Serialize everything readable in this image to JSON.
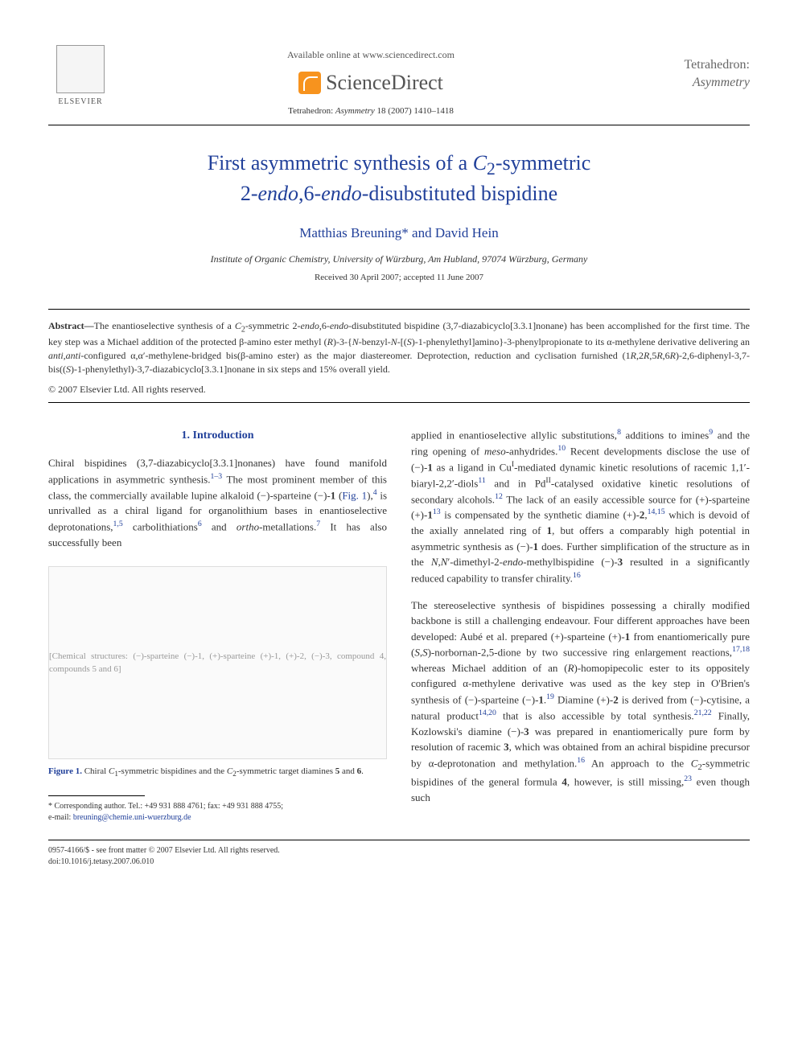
{
  "header": {
    "available_online": "Available online at www.sciencedirect.com",
    "sciencedirect": "ScienceDirect",
    "journal_ref": "Tetrahedron: Asymmetry 18 (2007) 1410–1418",
    "publisher": "ELSEVIER",
    "journal_title_main": "Tetrahedron:",
    "journal_title_sub": "Asymmetry"
  },
  "title_line1": "First asymmetric synthesis of a C₂-symmetric",
  "title_line2": "2-endo,6-endo-disubstituted bispidine",
  "authors": "Matthias Breuning* and David Hein",
  "affiliation": "Institute of Organic Chemistry, University of Würzburg, Am Hubland, 97074 Würzburg, Germany",
  "dates": "Received 30 April 2007; accepted 11 June 2007",
  "abstract": {
    "label": "Abstract—",
    "text": "The enantioselective synthesis of a C₂-symmetric 2-endo,6-endo-disubstituted bispidine (3,7-diazabicyclo[3.3.1]nonane) has been accomplished for the first time. The key step was a Michael addition of the protected β-amino ester methyl (R)-3-{N-benzyl-N-[(S)-1-phenylethyl]amino}-3-phenylpropionate to its α-methylene derivative delivering an anti,anti-configured α,α′-methylene-bridged bis(β-amino ester) as the major diastereomer. Deprotection, reduction and cyclisation furnished (1R,2R,5R,6R)-2,6-diphenyl-3,7-bis((S)-1-phenylethyl)-3,7-diazabicyclo[3.3.1]nonane in six steps and 15% overall yield.",
    "copyright": "© 2007 Elsevier Ltd. All rights reserved."
  },
  "section1_heading": "1. Introduction",
  "col1_para1": "Chiral bispidines (3,7-diazabicyclo[3.3.1]nonanes) have found manifold applications in asymmetric synthesis.¹⁻³ The most prominent member of this class, the commercially available lupine alkaloid (−)-sparteine (−)-1 (Fig. 1),⁴ is unrivalled as a chiral ligand for organolithium bases in enantioselective deprotonations,¹,⁵ carbolithiations⁶ and ortho-metallations.⁷ It has also successfully been",
  "figure1": {
    "placeholder": "[Chemical structures: (−)-sparteine (−)-1, (+)-sparteine (+)-1, (+)-2, (−)-3, compound 4, compounds 5 and 6]",
    "label": "Figure 1.",
    "caption": " Chiral C₁-symmetric bispidines and the C₂-symmetric target diamines 5 and 6."
  },
  "footnote": {
    "line1": "* Corresponding author. Tel.: +49 931 888 4761; fax: +49 931 888 4755;",
    "line2": "e-mail: ",
    "email": "breuning@chemie.uni-wuerzburg.de"
  },
  "col2_para1": "applied in enantioselective allylic substitutions,⁸ additions to imines⁹ and the ring opening of meso-anhydrides.¹⁰ Recent developments disclose the use of (−)-1 as a ligand in Cuᴵ-mediated dynamic kinetic resolutions of racemic 1,1′-biaryl-2,2′-diols¹¹ and in Pdᴵᴵ-catalysed oxidative kinetic resolutions of secondary alcohols.¹² The lack of an easily accessible source for (+)-sparteine (+)-1¹³ is compensated by the synthetic diamine (+)-2,¹⁴,¹⁵ which is devoid of the axially annelated ring of 1, but offers a comparably high potential in asymmetric synthesis as (−)-1 does. Further simplification of the structure as in the N,N′-dimethyl-2-endo-methylbispidine (−)-3 resulted in a significantly reduced capability to transfer chirality.¹⁶",
  "col2_para2": "The stereoselective synthesis of bispidines possessing a chirally modified backbone is still a challenging endeavour. Four different approaches have been developed: Aubé et al. prepared (+)-sparteine (+)-1 from enantiomerically pure (S,S)-norbornan-2,5-dione by two successive ring enlargement reactions,¹⁷,¹⁸ whereas Michael addition of an (R)-homopipecolic ester to its oppositely configured α-methylene derivative was used as the key step in O'Brien's synthesis of (−)-sparteine (−)-1.¹⁹ Diamine (+)-2 is derived from (−)-cytisine, a natural product¹⁴,²⁰ that is also accessible by total synthesis.²¹,²² Finally, Kozlowski's diamine (−)-3 was prepared in enantiomerically pure form by resolution of racemic 3, which was obtained from an achiral bispidine precursor by α-deprotonation and methylation.¹⁶ An approach to the C₂-symmetric bispidines of the general formula 4, however, is still missing,²³ even though such",
  "footer": {
    "line1": "0957-4166/$ - see front matter © 2007 Elsevier Ltd. All rights reserved.",
    "line2": "doi:10.1016/j.tetasy.2007.06.010"
  }
}
